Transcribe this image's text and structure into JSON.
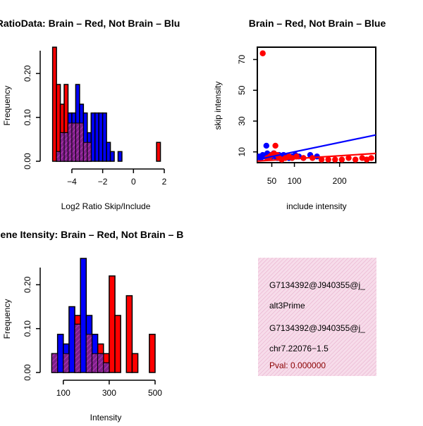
{
  "colors": {
    "red": "#ff0000",
    "blue": "#0000ff",
    "overlap": "#7f1f8a",
    "overlapHatch": "#c040c0",
    "infoBg": "#f7dcea",
    "infoHatch": "#e5a8c8",
    "pval": "#8b0000",
    "black": "#000000"
  },
  "chart_data": [
    {
      "id": "hist_ratio",
      "type": "histogram",
      "title": "RatioData: Brain – Red, Not Brain – Blu",
      "xlabel": "Log2 Ratio Skip/Include",
      "ylabel": "Frequency",
      "xlim": [
        -5.6,
        2.0
      ],
      "ylim": [
        0,
        0.26
      ],
      "xticks": [
        -4,
        -2,
        0,
        2
      ],
      "xtick_labels": [
        "−4",
        "−2",
        "0",
        "2"
      ],
      "yticks": [
        0.0,
        0.1,
        0.2
      ],
      "ytick_labels": [
        "0.00",
        "0.10",
        "0.20"
      ],
      "bin_width": 0.25,
      "series": [
        {
          "name": "Brain",
          "color": "red",
          "bins": [
            [
              -5.25,
              0.26
            ],
            [
              -5.0,
              0.175
            ],
            [
              -4.75,
              0.13
            ],
            [
              -4.5,
              0.175
            ],
            [
              -4.25,
              0.087
            ],
            [
              -4.0,
              0.087
            ],
            [
              -3.75,
              0.087
            ],
            [
              -3.5,
              0.087
            ],
            [
              -3.25,
              0.043
            ],
            [
              -3.0,
              0.043
            ],
            [
              1.5,
              0.043
            ]
          ]
        },
        {
          "name": "Not Brain",
          "color": "blue",
          "bins": [
            [
              -5.0,
              0.022
            ],
            [
              -4.75,
              0.065
            ],
            [
              -4.5,
              0.065
            ],
            [
              -4.25,
              0.11
            ],
            [
              -4.0,
              0.11
            ],
            [
              -3.75,
              0.175
            ],
            [
              -3.5,
              0.13
            ],
            [
              -3.25,
              0.11
            ],
            [
              -3.0,
              0.065
            ],
            [
              -2.75,
              0.11
            ],
            [
              -2.5,
              0.11
            ],
            [
              -2.25,
              0.11
            ],
            [
              -2.0,
              0.11
            ],
            [
              -1.75,
              0.043
            ],
            [
              -1.5,
              0.022
            ],
            [
              -1.0,
              0.022
            ]
          ]
        }
      ]
    },
    {
      "id": "scatter",
      "type": "scatter",
      "title": "Brain – Red, Not Brain – Blue",
      "xlabel": "include intensity",
      "ylabel": "skip intensity",
      "xlim": [
        18,
        280
      ],
      "ylim": [
        3,
        78
      ],
      "xticks": [
        50,
        100,
        200
      ],
      "xtick_labels": [
        "50",
        "100",
        "200"
      ],
      "yticks": [
        10,
        30,
        50,
        70
      ],
      "ytick_labels": [
        "10",
        "30",
        "50",
        "70"
      ],
      "series": [
        {
          "name": "Brain",
          "color": "red",
          "points": [
            [
              30,
              74
            ],
            [
              40,
              6
            ],
            [
              46,
              7
            ],
            [
              50,
              8
            ],
            [
              55,
              9
            ],
            [
              58,
              14
            ],
            [
              62,
              8
            ],
            [
              66,
              6
            ],
            [
              72,
              5
            ],
            [
              80,
              6
            ],
            [
              88,
              7
            ],
            [
              95,
              6
            ],
            [
              105,
              7
            ],
            [
              120,
              6
            ],
            [
              140,
              6
            ],
            [
              160,
              5
            ],
            [
              175,
              5
            ],
            [
              190,
              5
            ],
            [
              205,
              5
            ],
            [
              220,
              6
            ],
            [
              235,
              5
            ],
            [
              250,
              6
            ],
            [
              260,
              5
            ],
            [
              270,
              6
            ]
          ],
          "fit": [
            [
              18,
              4.0
            ],
            [
              280,
              9.0
            ]
          ]
        },
        {
          "name": "Not Brain",
          "color": "blue",
          "points": [
            [
              22,
              7
            ],
            [
              26,
              6
            ],
            [
              30,
              8
            ],
            [
              34,
              7
            ],
            [
              38,
              14
            ],
            [
              40,
              9
            ],
            [
              42,
              7
            ],
            [
              46,
              8
            ],
            [
              50,
              7
            ],
            [
              54,
              9
            ],
            [
              58,
              7
            ],
            [
              62,
              6
            ],
            [
              66,
              8
            ],
            [
              70,
              7
            ],
            [
              76,
              8
            ],
            [
              82,
              7
            ],
            [
              88,
              6
            ],
            [
              95,
              7
            ],
            [
              102,
              8
            ],
            [
              110,
              7
            ],
            [
              120,
              6
            ],
            [
              135,
              8
            ],
            [
              150,
              7
            ]
          ],
          "fit": [
            [
              18,
              5.0
            ],
            [
              280,
              21.0
            ]
          ]
        }
      ]
    },
    {
      "id": "hist_intensity",
      "type": "histogram",
      "title": "Gene Itensity: Brain – Red, Not Brain – B",
      "xlabel": "Intensity",
      "ylabel": "Frequency",
      "xlim": [
        30,
        540
      ],
      "ylim": [
        0,
        0.26
      ],
      "xticks": [
        100,
        300,
        500
      ],
      "xtick_labels": [
        "100",
        "300",
        "500"
      ],
      "yticks": [
        0.0,
        0.1,
        0.2
      ],
      "ytick_labels": [
        "0.00",
        "0.10",
        "0.20"
      ],
      "bin_width": 25,
      "series": [
        {
          "name": "Brain",
          "color": "red",
          "bins": [
            [
              50,
              0.043
            ],
            [
              100,
              0.043
            ],
            [
              150,
              0.13
            ],
            [
              200,
              0.087
            ],
            [
              225,
              0.043
            ],
            [
              250,
              0.065
            ],
            [
              275,
              0.043
            ],
            [
              300,
              0.22
            ],
            [
              325,
              0.13
            ],
            [
              375,
              0.175
            ],
            [
              400,
              0.043
            ],
            [
              475,
              0.087
            ]
          ]
        },
        {
          "name": "Not Brain",
          "color": "blue",
          "bins": [
            [
              50,
              0.043
            ],
            [
              75,
              0.087
            ],
            [
              100,
              0.065
            ],
            [
              125,
              0.15
            ],
            [
              150,
              0.11
            ],
            [
              175,
              0.26
            ],
            [
              200,
              0.13
            ],
            [
              225,
              0.087
            ],
            [
              250,
              0.043
            ],
            [
              275,
              0.022
            ]
          ]
        }
      ]
    }
  ],
  "info_box": {
    "lines": [
      "G7134392@J940355@j_",
      "alt3Prime",
      "G7134392@J940355@j_",
      "chr7.22076−1.5"
    ],
    "pval": "Pval: 0.000000"
  }
}
